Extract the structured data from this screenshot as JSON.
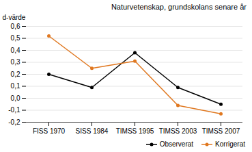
{
  "chart_data": {
    "type": "line",
    "title": "Naturvetenskap, grundskolans senare år",
    "ylabel": "d-värde",
    "categories": [
      "FISS 1970",
      "SISS 1984",
      "TIMSS 1995",
      "TIMSS 2003",
      "TIMSS 2007"
    ],
    "series": [
      {
        "name": "Observerat",
        "color": "#000000",
        "values": [
          0.2,
          0.09,
          0.38,
          0.09,
          -0.05
        ]
      },
      {
        "name": "Korrigerat",
        "color": "#e07820",
        "values": [
          0.52,
          0.25,
          0.31,
          -0.06,
          -0.13
        ]
      }
    ],
    "ylim": [
      -0.2,
      0.6
    ],
    "yticks": [
      {
        "value": -0.2,
        "label": "-0,2"
      },
      {
        "value": -0.1,
        "label": "-0,1"
      },
      {
        "value": 0.0,
        "label": "0,0"
      },
      {
        "value": 0.1,
        "label": "0,1"
      },
      {
        "value": 0.2,
        "label": "0,2"
      },
      {
        "value": 0.3,
        "label": "0,3"
      },
      {
        "value": 0.4,
        "label": "0,4"
      },
      {
        "value": 0.5,
        "label": "0,5"
      },
      {
        "value": 0.6,
        "label": "0,6"
      }
    ],
    "grid": true,
    "legend": "lower right",
    "marker": "dot"
  }
}
